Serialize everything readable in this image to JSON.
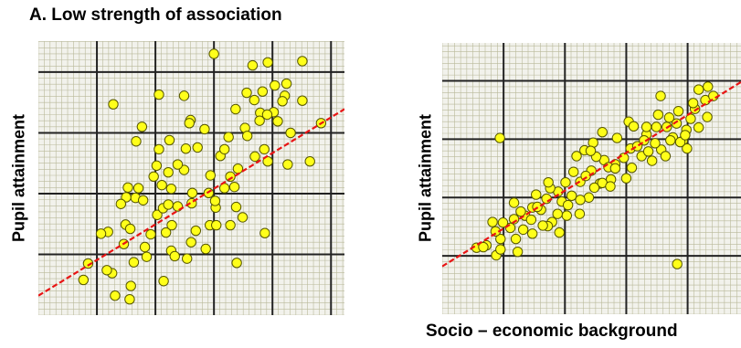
{
  "colors": {
    "background": "#f2f2ec",
    "minor_grid": "#b9b99a",
    "major_grid": "#222222",
    "point_fill": "#ffff1a",
    "point_stroke": "#555500",
    "trend_line": "#e81414"
  },
  "chart_data": [
    {
      "type": "scatter",
      "title": "A. Low strength of association",
      "xlabel": "",
      "ylabel": "Pupil attainment",
      "xlim": [
        0,
        5.23
      ],
      "ylim": [
        0,
        4.51
      ],
      "grid": true,
      "trend_line": [
        [
          0,
          0.32
        ],
        [
          5.23,
          3.39
        ]
      ],
      "points": [
        [
          1.28,
          3.47
        ],
        [
          3.0,
          4.3
        ],
        [
          3.66,
          4.11
        ],
        [
          2.06,
          3.63
        ],
        [
          2.49,
          3.61
        ],
        [
          3.79,
          3.33
        ],
        [
          4.31,
          3.0
        ],
        [
          2.6,
          3.21
        ],
        [
          4.21,
          3.61
        ],
        [
          4.51,
          3.53
        ],
        [
          3.69,
          3.54
        ],
        [
          1.77,
          3.1
        ],
        [
          2.24,
          2.88
        ],
        [
          4.02,
          3.34
        ],
        [
          4.26,
          2.48
        ],
        [
          4.64,
          2.53
        ],
        [
          3.41,
          2.41
        ],
        [
          2.94,
          2.3
        ],
        [
          2.06,
          2.73
        ],
        [
          2.72,
          2.76
        ],
        [
          3.56,
          3.66
        ],
        [
          3.83,
          3.68
        ],
        [
          1.67,
          2.86
        ],
        [
          2.49,
          2.39
        ],
        [
          2.22,
          2.35
        ],
        [
          3.92,
          2.53
        ],
        [
          4.09,
          3.19
        ],
        [
          3.53,
          3.08
        ],
        [
          2.84,
          3.06
        ],
        [
          3.11,
          2.62
        ],
        [
          3.28,
          2.28
        ],
        [
          3.86,
          2.73
        ],
        [
          2.02,
          2.46
        ],
        [
          2.62,
          1.84
        ],
        [
          2.91,
          2.01
        ],
        [
          3.03,
          1.77
        ],
        [
          3.18,
          2.09
        ],
        [
          3.38,
          1.78
        ],
        [
          3.18,
          2.73
        ],
        [
          3.35,
          2.11
        ],
        [
          2.03,
          1.65
        ],
        [
          2.38,
          1.79
        ],
        [
          2.27,
          2.08
        ],
        [
          1.97,
          2.28
        ],
        [
          1.66,
          1.93
        ],
        [
          1.71,
          2.09
        ],
        [
          2.93,
          1.48
        ],
        [
          2.69,
          1.39
        ],
        [
          2.86,
          1.09
        ],
        [
          2.61,
          1.2
        ],
        [
          1.92,
          1.33
        ],
        [
          2.18,
          1.36
        ],
        [
          2.27,
          1.06
        ],
        [
          2.54,
          0.93
        ],
        [
          1.19,
          1.37
        ],
        [
          1.46,
          1.17
        ],
        [
          1.49,
          1.49
        ],
        [
          1.82,
          1.12
        ],
        [
          1.63,
          0.87
        ],
        [
          1.85,
          0.96
        ],
        [
          2.14,
          0.56
        ],
        [
          1.26,
          0.69
        ],
        [
          1.31,
          0.32
        ],
        [
          0.77,
          0.58
        ],
        [
          1.17,
          0.74
        ],
        [
          3.39,
          0.86
        ],
        [
          3.87,
          1.35
        ],
        [
          1.58,
          0.48
        ],
        [
          2.33,
          0.97
        ],
        [
          1.56,
          0.26
        ],
        [
          3.04,
          1.48
        ],
        [
          3.28,
          1.48
        ],
        [
          3.49,
          1.61
        ],
        [
          3.92,
          4.16
        ],
        [
          4.17,
          3.52
        ],
        [
          4.51,
          4.18
        ],
        [
          4.24,
          3.81
        ],
        [
          3.78,
          3.2
        ],
        [
          3.91,
          3.3
        ],
        [
          3.57,
          2.95
        ],
        [
          3.25,
          2.93
        ],
        [
          3.37,
          3.39
        ],
        [
          4.83,
          3.16
        ],
        [
          2.13,
          1.76
        ],
        [
          2.63,
          2.01
        ],
        [
          2.38,
          2.48
        ],
        [
          2.11,
          2.14
        ],
        [
          2.28,
          1.48
        ],
        [
          1.79,
          1.89
        ],
        [
          4.04,
          3.78
        ],
        [
          3.7,
          2.61
        ],
        [
          1.07,
          1.34
        ],
        [
          0.85,
          0.85
        ],
        [
          1.5,
          1.94
        ],
        [
          1.57,
          1.42
        ],
        [
          2.22,
          1.82
        ],
        [
          2.52,
          2.74
        ],
        [
          3.02,
          1.88
        ],
        [
          1.53,
          2.1
        ],
        [
          1.41,
          1.83
        ],
        [
          2.58,
          3.16
        ]
      ]
    },
    {
      "type": "scatter",
      "title": "",
      "xlabel": "Socio – economic background",
      "ylabel": "Pupil attainment",
      "xlim": [
        0,
        4.87
      ],
      "ylim": [
        0,
        4.65
      ],
      "grid": true,
      "trend_line": [
        [
          0,
          0.82
        ],
        [
          4.87,
          3.98
        ]
      ],
      "points": [
        [
          0.82,
          1.58
        ],
        [
          1.17,
          1.63
        ],
        [
          1.32,
          1.45
        ],
        [
          0.95,
          1.29
        ],
        [
          1.47,
          1.83
        ],
        [
          1.61,
          1.79
        ],
        [
          1.79,
          1.58
        ],
        [
          1.35,
          1.69
        ],
        [
          1.72,
          1.51
        ],
        [
          2.03,
          1.69
        ],
        [
          1.95,
          1.93
        ],
        [
          2.24,
          1.72
        ],
        [
          2.39,
          2.0
        ],
        [
          1.89,
          2.1
        ],
        [
          2.57,
          2.24
        ],
        [
          2.75,
          2.31
        ],
        [
          2.82,
          2.57
        ],
        [
          3.09,
          2.51
        ],
        [
          3.25,
          2.71
        ],
        [
          3.42,
          2.63
        ],
        [
          3.57,
          2.82
        ],
        [
          3.76,
          3.03
        ],
        [
          3.64,
          2.71
        ],
        [
          3.92,
          2.97
        ],
        [
          4.05,
          3.35
        ],
        [
          4.18,
          3.2
        ],
        [
          3.82,
          3.27
        ],
        [
          3.99,
          2.84
        ],
        [
          3.52,
          3.42
        ],
        [
          3.33,
          3.08
        ],
        [
          3.07,
          2.84
        ],
        [
          2.64,
          2.64
        ],
        [
          2.43,
          2.46
        ],
        [
          2.25,
          2.27
        ],
        [
          2.11,
          2.03
        ],
        [
          1.76,
          2.16
        ],
        [
          1.53,
          2.05
        ],
        [
          1.47,
          1.38
        ],
        [
          1.11,
          1.48
        ],
        [
          0.56,
          1.14
        ],
        [
          0.72,
          1.18
        ],
        [
          0.88,
          1.01
        ],
        [
          1.2,
          1.29
        ],
        [
          2.32,
          2.81
        ],
        [
          2.19,
          2.71
        ],
        [
          2.46,
          2.94
        ],
        [
          2.61,
          3.12
        ],
        [
          2.85,
          3.02
        ],
        [
          3.04,
          3.3
        ],
        [
          3.33,
          3.21
        ],
        [
          3.49,
          3.21
        ],
        [
          3.7,
          3.37
        ],
        [
          3.85,
          3.48
        ],
        [
          3.98,
          3.16
        ],
        [
          4.12,
          3.52
        ],
        [
          4.29,
          3.67
        ],
        [
          4.32,
          3.38
        ],
        [
          4.09,
          3.62
        ],
        [
          3.72,
          2.98
        ],
        [
          3.47,
          2.93
        ],
        [
          3.18,
          2.88
        ],
        [
          2.96,
          2.68
        ],
        [
          2.71,
          2.52
        ],
        [
          2.51,
          2.7
        ],
        [
          2.34,
          2.37
        ],
        [
          2.01,
          2.26
        ],
        [
          1.88,
          1.72
        ],
        [
          1.64,
          1.52
        ],
        [
          1.45,
          1.62
        ],
        [
          1.17,
          1.91
        ],
        [
          0.99,
          1.57
        ],
        [
          0.87,
          1.42
        ],
        [
          1.91,
          1.4
        ],
        [
          2.25,
          1.96
        ],
        [
          2.82,
          2.5
        ],
        [
          3.0,
          2.33
        ],
        [
          3.29,
          2.98
        ],
        [
          3.66,
          3.21
        ],
        [
          3.56,
          3.74
        ],
        [
          4.18,
          3.85
        ],
        [
          4.33,
          3.9
        ],
        [
          4.42,
          3.74
        ],
        [
          3.88,
          2.95
        ],
        [
          2.48,
          2.17
        ],
        [
          2.61,
          2.25
        ],
        [
          2.05,
          1.87
        ],
        [
          1.23,
          1.07
        ],
        [
          0.95,
          1.11
        ],
        [
          0.67,
          1.15
        ],
        [
          1.73,
          2.26
        ],
        [
          2.74,
          2.19
        ],
        [
          3.12,
          3.22
        ],
        [
          1.55,
          1.84
        ],
        [
          1.7,
          1.98
        ],
        [
          3.83,
          0.86
        ],
        [
          0.94,
          3.02
        ],
        [
          1.28,
          1.76
        ],
        [
          2.14,
          2.44
        ],
        [
          3.36,
          2.79
        ],
        [
          3.96,
          3.07
        ],
        [
          2.42,
          2.8
        ]
      ]
    }
  ]
}
